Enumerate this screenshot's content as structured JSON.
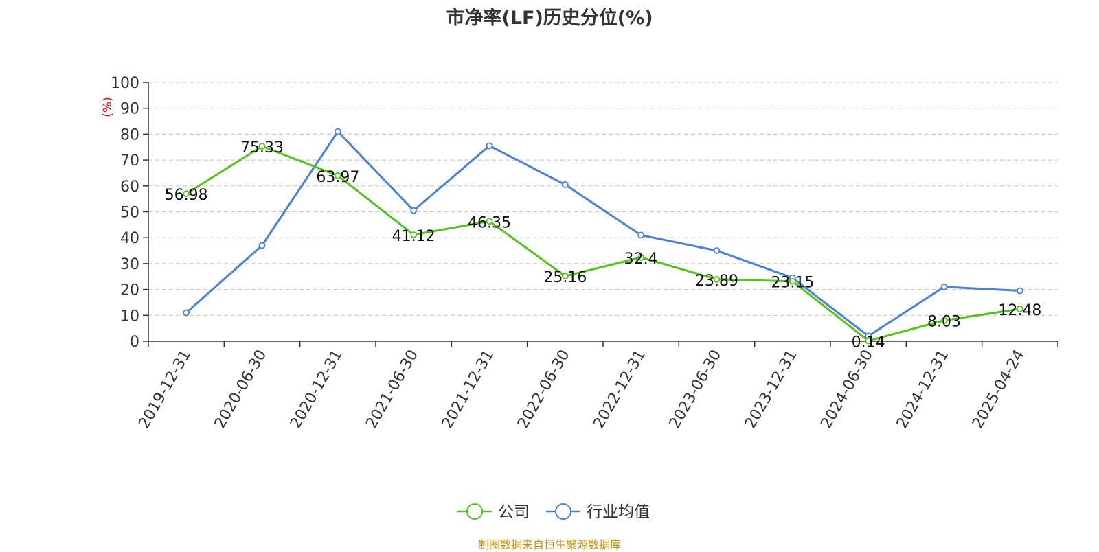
{
  "page": {
    "title": "市净率(LF)历史分位(%)",
    "source": "制图数据来自恒生聚源数据库"
  },
  "colors": {
    "company": "#52c41a",
    "industry": "#4a7fdb",
    "ylabel": "#ff0000",
    "source": "#c9900c",
    "grid": "#cccccc"
  },
  "chart_data": {
    "type": "line",
    "title": "市净率(LF)历史分位(%)",
    "xlabel": "",
    "ylabel": "(%)",
    "ylim": [
      0,
      100
    ],
    "yticks": [
      0,
      10,
      20,
      30,
      40,
      50,
      60,
      70,
      80,
      90,
      100
    ],
    "grid": "horizontal-dashed",
    "legend_position": "bottom-center",
    "x": [
      "2019-12-31",
      "2020-06-30",
      "2020-12-31",
      "2021-06-30",
      "2021-12-31",
      "2022-06-30",
      "2022-12-31",
      "2023-06-30",
      "2023-12-31",
      "2024-06-30",
      "2024-12-31",
      "2025-04-24"
    ],
    "series": [
      {
        "name": "公司",
        "values": [
          56.98,
          75.33,
          63.97,
          41.12,
          46.35,
          25.16,
          32.4,
          23.89,
          23.15,
          0.14,
          8.03,
          12.48
        ],
        "labels": [
          "56.98",
          "75.33",
          "63.97",
          "41.12",
          "46.35",
          "25.16",
          "32.4",
          "23.89",
          "23.15",
          "0.14",
          "8.03",
          "12.48"
        ]
      },
      {
        "name": "行业均值",
        "values": [
          11,
          37,
          81,
          50.5,
          75.5,
          60.5,
          41,
          35,
          24.5,
          2,
          21,
          19.5
        ]
      }
    ]
  }
}
